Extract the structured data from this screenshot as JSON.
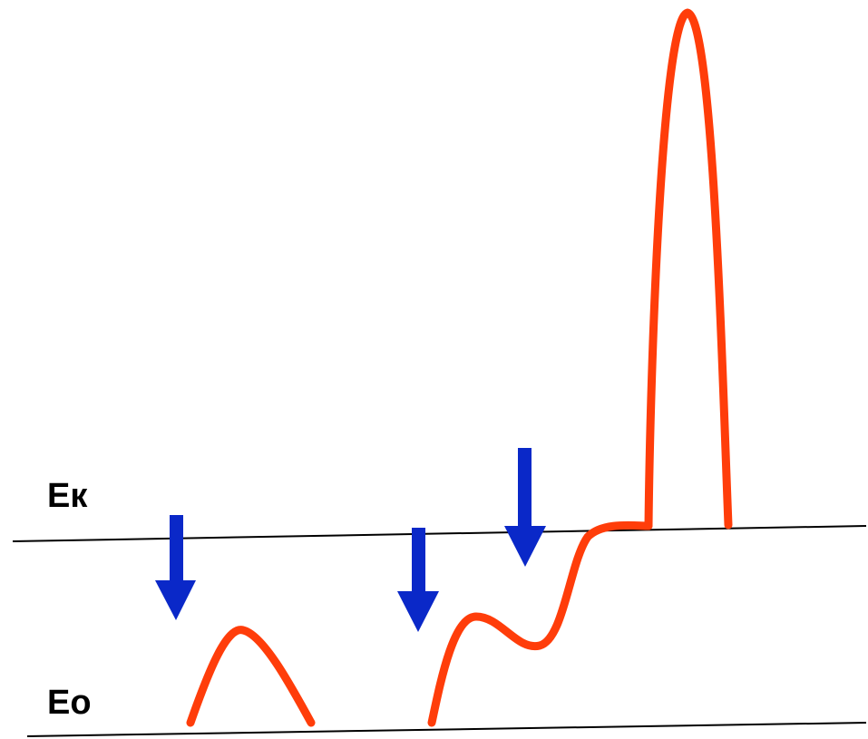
{
  "labels": {
    "upper_level": "Eк",
    "lower_level": "Eo"
  },
  "colors": {
    "curve": "#ff3d0a",
    "arrow": "#0a28c8",
    "line": "#000000"
  }
}
